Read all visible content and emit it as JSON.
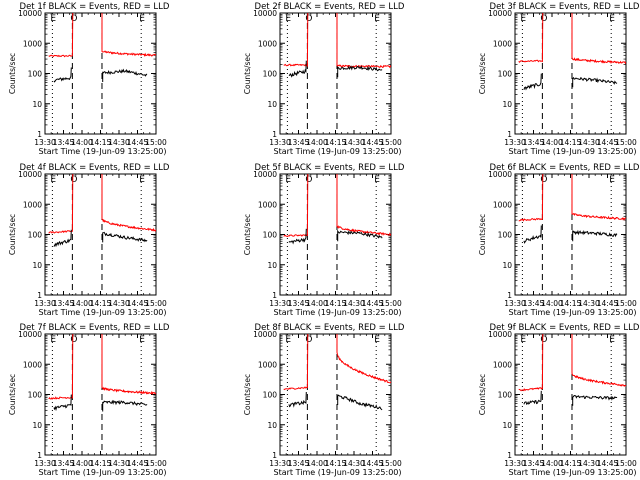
{
  "page": {
    "background": "#ffffff",
    "events_color": "#000000",
    "lld_color": "#ff0000"
  },
  "chart_data": [
    {
      "type": "line",
      "title": "Det 1f BLACK = Events, RED = LLD",
      "xlabel": "Start Time (19-Jun-09 13:25:00)",
      "ylabel": "Counts/sec",
      "y_scale": "log",
      "ylim": [
        1,
        10000
      ],
      "y_ticks": [
        "1",
        "10",
        "100",
        "1000",
        "10000"
      ],
      "x_ticks": [
        "13:30",
        "13:45",
        "14:00",
        "14:15",
        "14:30",
        "14:45",
        "15:00"
      ],
      "markers": {
        "E1": "E",
        "O": "O",
        "E2": "E"
      },
      "series": [
        {
          "name": "Events",
          "color": "#000000",
          "seg1": {
            "x_min": [
              13.62,
              13.85
            ],
            "y": [
              60,
              72
            ]
          },
          "seg2": {
            "x_min": [
              14.28,
              14.88
            ],
            "y": [
              105,
              120,
              85
            ]
          }
        },
        {
          "name": "LLD",
          "color": "#ff0000",
          "pre": {
            "x_min": [
              13.55,
              13.87
            ],
            "y": [
              380,
              380
            ]
          },
          "post": {
            "x_min": [
              14.27,
              15.0
            ],
            "y": [
              560,
              400
            ]
          }
        }
      ]
    },
    {
      "type": "line",
      "title": "Det 2f BLACK = Events, RED = LLD",
      "xlabel": "Start Time (19-Jun-09 13:25:00)",
      "ylabel": "Counts/sec",
      "y_scale": "log",
      "ylim": [
        1,
        10000
      ],
      "y_ticks": [
        "1",
        "10",
        "100",
        "1000",
        "10000"
      ],
      "x_ticks": [
        "13:30",
        "13:45",
        "14:00",
        "14:15",
        "14:30",
        "14:45",
        "15:00"
      ],
      "markers": {
        "E1": "E",
        "O": "O",
        "E2": "E"
      },
      "series": [
        {
          "name": "Events",
          "color": "#000000",
          "seg1": {
            "x_min": [
              13.62,
              13.85
            ],
            "y": [
              85,
              120
            ]
          },
          "seg2": {
            "x_min": [
              14.28,
              14.88
            ],
            "y": [
              150,
              160,
              130
            ]
          }
        },
        {
          "name": "LLD",
          "color": "#ff0000",
          "pre": {
            "x_min": [
              13.55,
              13.87
            ],
            "y": [
              190,
              190
            ]
          },
          "post": {
            "x_min": [
              14.27,
              15.0
            ],
            "y": [
              180,
              170
            ]
          }
        }
      ]
    },
    {
      "type": "line",
      "title": "Det 3f BLACK = Events, RED = LLD",
      "xlabel": "Start Time (19-Jun-09 13:25:00)",
      "ylabel": "Counts/sec",
      "y_scale": "log",
      "ylim": [
        1,
        10000
      ],
      "y_ticks": [
        "1",
        "10",
        "100",
        "1000",
        "10000"
      ],
      "x_ticks": [
        "13:30",
        "13:45",
        "14:00",
        "14:15",
        "14:30",
        "14:45",
        "15:00"
      ],
      "markers": {
        "E1": "E",
        "O": "O",
        "E2": "E"
      },
      "series": [
        {
          "name": "Events",
          "color": "#000000",
          "seg1": {
            "x_min": [
              13.62,
              13.85
            ],
            "y": [
              32,
              45
            ]
          },
          "seg2": {
            "x_min": [
              14.28,
              14.88
            ],
            "y": [
              70,
              60,
              48
            ]
          }
        },
        {
          "name": "LLD",
          "color": "#ff0000",
          "pre": {
            "x_min": [
              13.55,
              13.87
            ],
            "y": [
              250,
              260
            ]
          },
          "post": {
            "x_min": [
              14.27,
              15.0
            ],
            "y": [
              320,
              230
            ]
          }
        }
      ]
    },
    {
      "type": "line",
      "title": "Det 4f BLACK = Events, RED = LLD",
      "xlabel": "Start Time (19-Jun-09 13:25:00)",
      "ylabel": "Counts/sec",
      "y_scale": "log",
      "ylim": [
        1,
        10000
      ],
      "y_ticks": [
        "1",
        "10",
        "100",
        "1000",
        "10000"
      ],
      "x_ticks": [
        "13:30",
        "13:45",
        "14:00",
        "14:15",
        "14:30",
        "14:45",
        "15:00"
      ],
      "markers": {
        "E1": "E",
        "O": "O",
        "E2": "E"
      },
      "series": [
        {
          "name": "Events",
          "color": "#000000",
          "seg1": {
            "x_min": [
              13.62,
              13.85
            ],
            "y": [
              45,
              65
            ]
          },
          "seg2": {
            "x_min": [
              14.28,
              14.88
            ],
            "y": [
              110,
              80,
              62
            ]
          }
        },
        {
          "name": "LLD",
          "color": "#ff0000",
          "pre": {
            "x_min": [
              13.55,
              13.87
            ],
            "y": [
              115,
              130
            ]
          },
          "post": {
            "x_min": [
              14.27,
              15.0
            ],
            "y": [
              330,
              140
            ]
          }
        }
      ]
    },
    {
      "type": "line",
      "title": "Det 5f BLACK = Events, RED = LLD",
      "xlabel": "Start Time (19-Jun-09 13:25:00)",
      "ylabel": "Counts/sec",
      "y_scale": "log",
      "ylim": [
        1,
        10000
      ],
      "y_ticks": [
        "1",
        "10",
        "100",
        "1000",
        "10000"
      ],
      "x_ticks": [
        "13:30",
        "13:45",
        "14:00",
        "14:15",
        "14:30",
        "14:45",
        "15:00"
      ],
      "markers": {
        "E1": "E",
        "O": "O",
        "E2": "E"
      },
      "series": [
        {
          "name": "Events",
          "color": "#000000",
          "seg1": {
            "x_min": [
              13.62,
              13.85
            ],
            "y": [
              55,
              70
            ]
          },
          "seg2": {
            "x_min": [
              14.28,
              14.88
            ],
            "y": [
              120,
              110,
              80
            ]
          }
        },
        {
          "name": "LLD",
          "color": "#ff0000",
          "pre": {
            "x_min": [
              13.55,
              13.87
            ],
            "y": [
              90,
              95
            ]
          },
          "post": {
            "x_min": [
              14.27,
              15.0
            ],
            "y": [
              200,
              100
            ]
          }
        }
      ]
    },
    {
      "type": "line",
      "title": "Det 6f BLACK = Events, RED = LLD",
      "xlabel": "Start Time (19-Jun-09 13:25:00)",
      "ylabel": "Counts/sec",
      "y_scale": "log",
      "ylim": [
        1,
        10000
      ],
      "y_ticks": [
        "1",
        "10",
        "100",
        "1000",
        "10000"
      ],
      "x_ticks": [
        "13:30",
        "13:45",
        "14:00",
        "14:15",
        "14:30",
        "14:45",
        "15:00"
      ],
      "markers": {
        "E1": "E",
        "O": "O",
        "E2": "E"
      },
      "series": [
        {
          "name": "Events",
          "color": "#000000",
          "seg1": {
            "x_min": [
              13.62,
              13.85
            ],
            "y": [
              60,
              90
            ]
          },
          "seg2": {
            "x_min": [
              14.28,
              14.88
            ],
            "y": [
              120,
              110,
              95
            ]
          }
        },
        {
          "name": "LLD",
          "color": "#ff0000",
          "pre": {
            "x_min": [
              13.55,
              13.87
            ],
            "y": [
              300,
              330
            ]
          },
          "post": {
            "x_min": [
              14.27,
              15.0
            ],
            "y": [
              500,
              330
            ]
          }
        }
      ]
    },
    {
      "type": "line",
      "title": "Det 7f BLACK = Events, RED = LLD",
      "xlabel": "Start Time (19-Jun-09 13:25:00)",
      "ylabel": "Counts/sec",
      "y_scale": "log",
      "ylim": [
        1,
        10000
      ],
      "y_ticks": [
        "1",
        "10",
        "100",
        "1000",
        "10000"
      ],
      "x_ticks": [
        "13:30",
        "13:45",
        "14:00",
        "14:15",
        "14:30",
        "14:45",
        "15:00"
      ],
      "markers": {
        "E1": "E",
        "O": "O",
        "E2": "E"
      },
      "series": [
        {
          "name": "Events",
          "color": "#000000",
          "seg1": {
            "x_min": [
              13.62,
              13.85
            ],
            "y": [
              35,
              45
            ]
          },
          "seg2": {
            "x_min": [
              14.28,
              14.88
            ],
            "y": [
              55,
              55,
              45
            ]
          }
        },
        {
          "name": "LLD",
          "color": "#ff0000",
          "pre": {
            "x_min": [
              13.55,
              13.87
            ],
            "y": [
              75,
              80
            ]
          },
          "post": {
            "x_min": [
              14.27,
              15.0
            ],
            "y": [
              170,
              110
            ]
          }
        }
      ]
    },
    {
      "type": "line",
      "title": "Det 8f BLACK = Events, RED = LLD",
      "xlabel": "Start Time (19-Jun-09 13:25:00)",
      "ylabel": "Counts/sec",
      "y_scale": "log",
      "ylim": [
        1,
        10000
      ],
      "y_ticks": [
        "1",
        "10",
        "100",
        "1000",
        "10000"
      ],
      "x_ticks": [
        "13:30",
        "13:45",
        "14:00",
        "14:15",
        "14:30",
        "14:45",
        "15:00"
      ],
      "markers": {
        "E1": "E",
        "O": "O",
        "E2": "E"
      },
      "series": [
        {
          "name": "Events",
          "color": "#000000",
          "seg1": {
            "x_min": [
              13.62,
              13.85
            ],
            "y": [
              45,
              55
            ]
          },
          "seg2": {
            "x_min": [
              14.28,
              14.88
            ],
            "y": [
              90,
              50,
              35
            ]
          }
        },
        {
          "name": "LLD",
          "color": "#ff0000",
          "pre": {
            "x_min": [
              13.55,
              13.87
            ],
            "y": [
              150,
              170
            ]
          },
          "post": {
            "x_min": [
              14.27,
              15.0
            ],
            "y": [
              2500,
              250
            ]
          }
        }
      ]
    },
    {
      "type": "line",
      "title": "Det 9f BLACK = Events, RED = LLD",
      "xlabel": "Start Time (19-Jun-09 13:25:00)",
      "ylabel": "Counts/sec",
      "y_scale": "log",
      "ylim": [
        1,
        10000
      ],
      "y_ticks": [
        "1",
        "10",
        "100",
        "1000",
        "10000"
      ],
      "x_ticks": [
        "13:30",
        "13:45",
        "14:00",
        "14:15",
        "14:30",
        "14:45",
        "15:00"
      ],
      "markers": {
        "E1": "E",
        "O": "O",
        "E2": "E"
      },
      "series": [
        {
          "name": "Events",
          "color": "#000000",
          "seg1": {
            "x_min": [
              13.62,
              13.85
            ],
            "y": [
              50,
              60
            ]
          },
          "seg2": {
            "x_min": [
              14.28,
              14.88
            ],
            "y": [
              85,
              80,
              75
            ]
          }
        },
        {
          "name": "LLD",
          "color": "#ff0000",
          "pre": {
            "x_min": [
              13.55,
              13.87
            ],
            "y": [
              140,
              160
            ]
          },
          "post": {
            "x_min": [
              14.27,
              15.0
            ],
            "y": [
              500,
              200
            ]
          }
        }
      ]
    }
  ]
}
